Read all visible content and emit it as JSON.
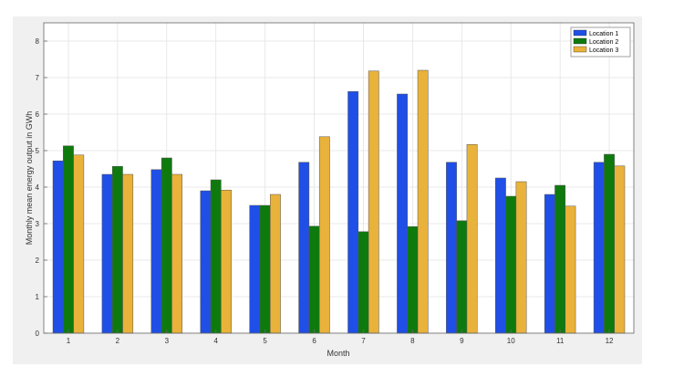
{
  "colors": {
    "figure_bg": "#f0f0f0",
    "axes_bg": "#ffffff",
    "grid": "#e3e3e3",
    "axis": "#666666"
  },
  "chart_data": {
    "type": "bar",
    "title": "",
    "xlabel": "Month",
    "ylabel": "Monthly mean energy output in GWh",
    "categories": [
      "1",
      "2",
      "3",
      "4",
      "5",
      "6",
      "7",
      "8",
      "9",
      "10",
      "11",
      "12"
    ],
    "ylim": [
      0,
      8.5
    ],
    "yticks": [
      0,
      1,
      2,
      3,
      4,
      5,
      6,
      7,
      8
    ],
    "grid": true,
    "legend_position": "top-right",
    "series": [
      {
        "name": "Location 1",
        "color": "#1f4fe6",
        "values": [
          4.72,
          4.35,
          4.48,
          3.9,
          3.5,
          4.68,
          6.62,
          6.55,
          4.68,
          4.25,
          3.8,
          4.68
        ]
      },
      {
        "name": "Location 2",
        "color": "#0e7a0e",
        "values": [
          5.13,
          4.57,
          4.8,
          4.2,
          3.5,
          2.93,
          2.78,
          2.92,
          3.08,
          3.75,
          4.05,
          4.9
        ]
      },
      {
        "name": "Location 3",
        "color": "#e9b23a",
        "values": [
          4.88,
          4.35,
          4.35,
          3.92,
          3.8,
          5.38,
          7.18,
          7.2,
          5.17,
          4.15,
          3.48,
          4.58
        ]
      }
    ]
  }
}
